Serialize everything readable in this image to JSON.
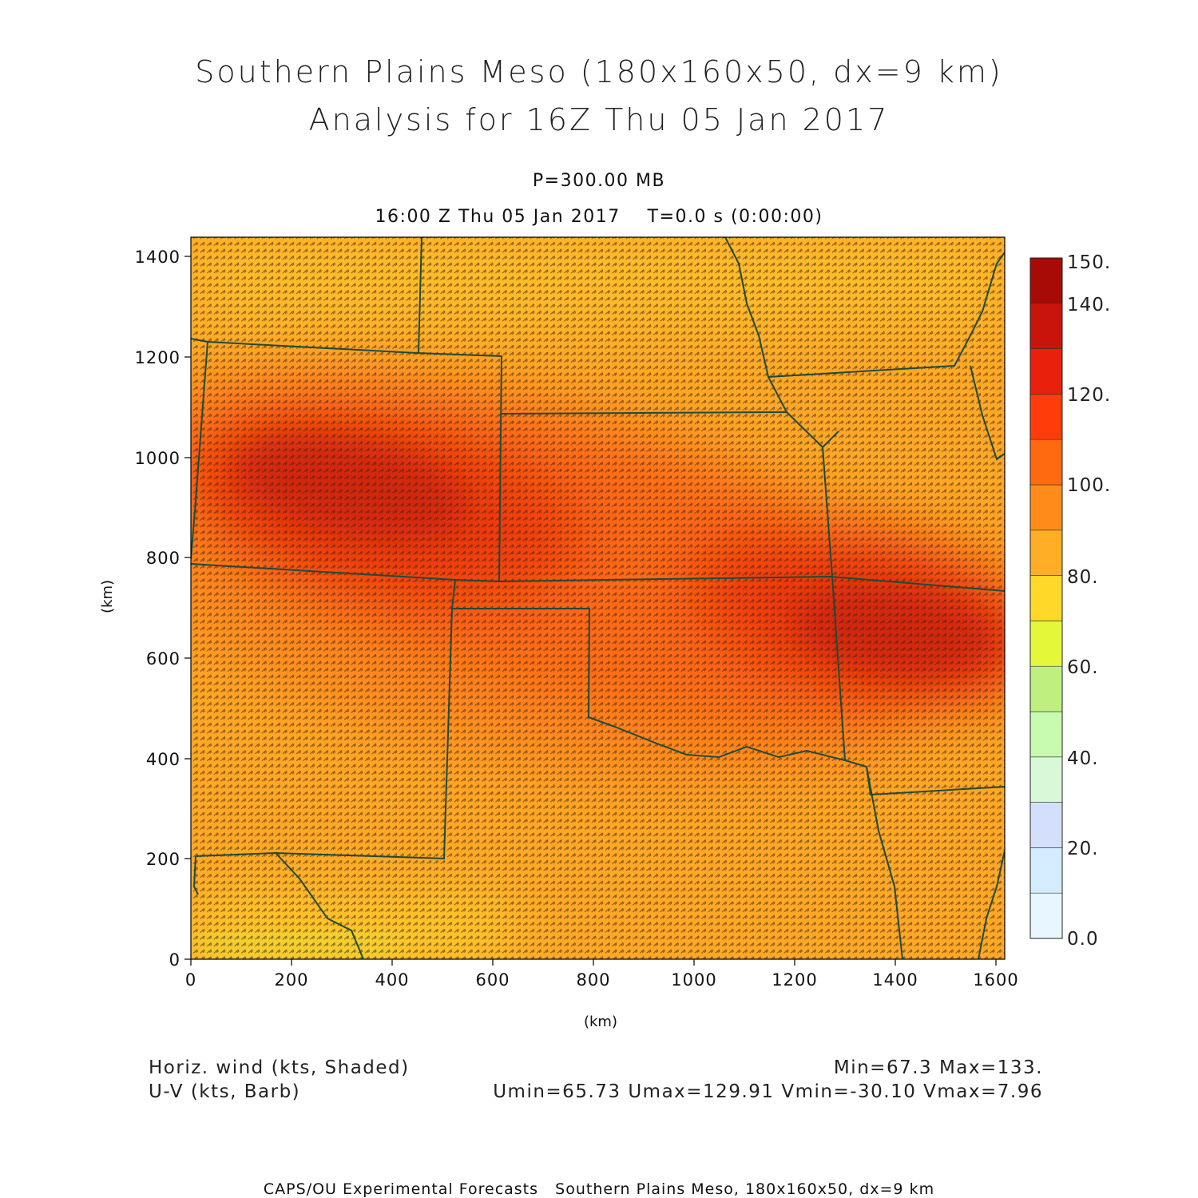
{
  "header": {
    "title_line1": "Southern Plains Meso (180x160x50, dx=9 km)",
    "title_line2": "Analysis for 16Z Thu 05 Jan 2017",
    "level": "P=300.00 MB",
    "valid_time": "16:00 Z Thu 05 Jan 2017    T=0.0 s (0:00:00)"
  },
  "map": {
    "x_axis_label": "(km)",
    "y_axis_label": "(km)",
    "x_range_km": [
      0,
      1620
    ],
    "y_range_km": [
      0,
      1440
    ],
    "x_ticks": [
      "0",
      "200",
      "400",
      "600",
      "800",
      "1000",
      "1200",
      "1400",
      "1600"
    ],
    "y_ticks": [
      "0",
      "200",
      "400",
      "600",
      "800",
      "1000",
      "1200",
      "1400"
    ],
    "boundary_color": "#1e4a3a"
  },
  "colorbar": {
    "labels": [
      "0.0",
      "20.",
      "40.",
      "60.",
      "80.",
      "100.",
      "120.",
      "140.",
      "150."
    ],
    "bins": [
      {
        "from": 0,
        "to": 10,
        "color": "#e8f7ff"
      },
      {
        "from": 10,
        "to": 20,
        "color": "#d4ecff"
      },
      {
        "from": 20,
        "to": 30,
        "color": "#d4e0fb"
      },
      {
        "from": 30,
        "to": 40,
        "color": "#d8f8d8"
      },
      {
        "from": 40,
        "to": 50,
        "color": "#c8fab0"
      },
      {
        "from": 50,
        "to": 60,
        "color": "#bff07f"
      },
      {
        "from": 60,
        "to": 70,
        "color": "#e4f83a"
      },
      {
        "from": 70,
        "to": 80,
        "color": "#ffd82a"
      },
      {
        "from": 80,
        "to": 90,
        "color": "#ffae26"
      },
      {
        "from": 90,
        "to": 100,
        "color": "#ff8c1a"
      },
      {
        "from": 100,
        "to": 110,
        "color": "#ff6a10"
      },
      {
        "from": 110,
        "to": 120,
        "color": "#ff3c0a"
      },
      {
        "from": 120,
        "to": 130,
        "color": "#e8200c"
      },
      {
        "from": 130,
        "to": 140,
        "color": "#c8140a"
      },
      {
        "from": 140,
        "to": 150,
        "color": "#a80a06"
      }
    ]
  },
  "legend": {
    "shaded_field": "Horiz. wind (kts, Shaded)",
    "barb_field": "U-V (kts, Barb)",
    "minmax": "Min=67.3 Max=133.",
    "uv_stats": "Umin=65.73 Umax=129.91 Vmin=-30.10 Vmax=7.96"
  },
  "footer": {
    "credit": "CAPS/OU Experimental Forecasts   Southern Plains Meso, 180x160x50, dx=9 km"
  }
}
